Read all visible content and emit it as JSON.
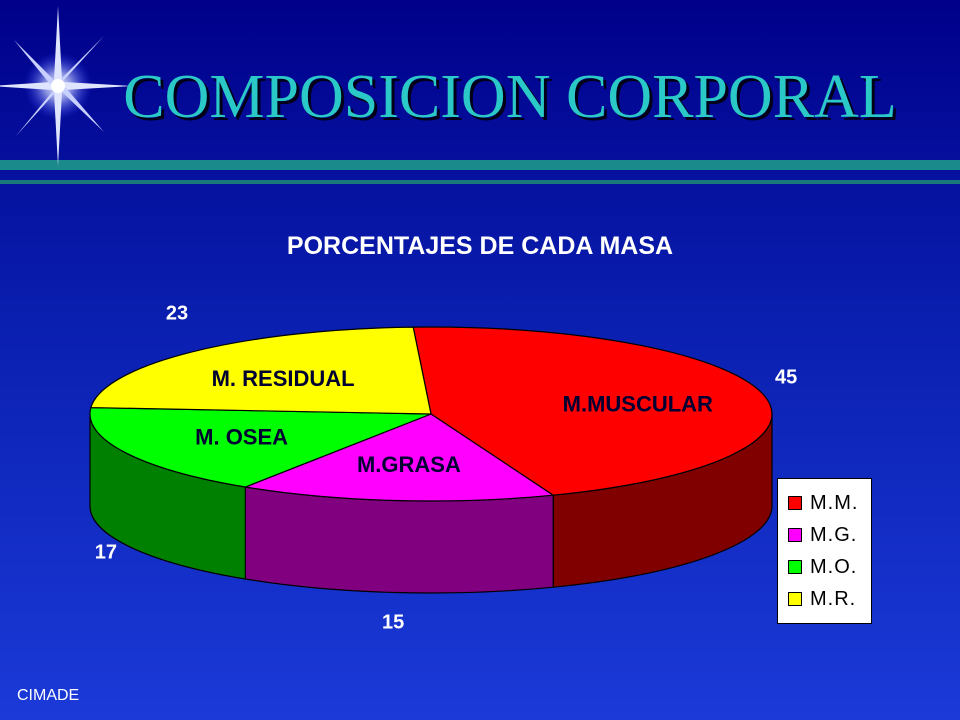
{
  "slide": {
    "title": "COMPOSICION CORPORAL",
    "footer": "CIMADE",
    "background_colors": [
      "#00008a",
      "#1b3ad8"
    ],
    "title_color": "#2bc8c8",
    "accent_line_color": "#1a8a8a",
    "decoration": "starburst-icon"
  },
  "chart_data": {
    "type": "pie",
    "style": "3d",
    "title": "PORCENTAJES DE CADA MASA",
    "slices": [
      {
        "legend": "M.M.",
        "label": "M.MUSCULAR",
        "value": 45,
        "value_label": "45",
        "color": "#ff0000",
        "side_color": "#800000"
      },
      {
        "legend": "M.G.",
        "label": "M.GRASA",
        "value": 15,
        "value_label": "15",
        "color": "#ff00ff",
        "side_color": "#800080"
      },
      {
        "legend": "M.O.",
        "label": "M. OSEA",
        "value": 17,
        "value_label": "17",
        "color": "#00ff00",
        "side_color": "#008000"
      },
      {
        "legend": "M.R.",
        "label": "M. RESIDUAL",
        "value": 23,
        "value_label": "23",
        "color": "#ffff00",
        "side_color": "#808000"
      }
    ],
    "legend_position": "right"
  }
}
